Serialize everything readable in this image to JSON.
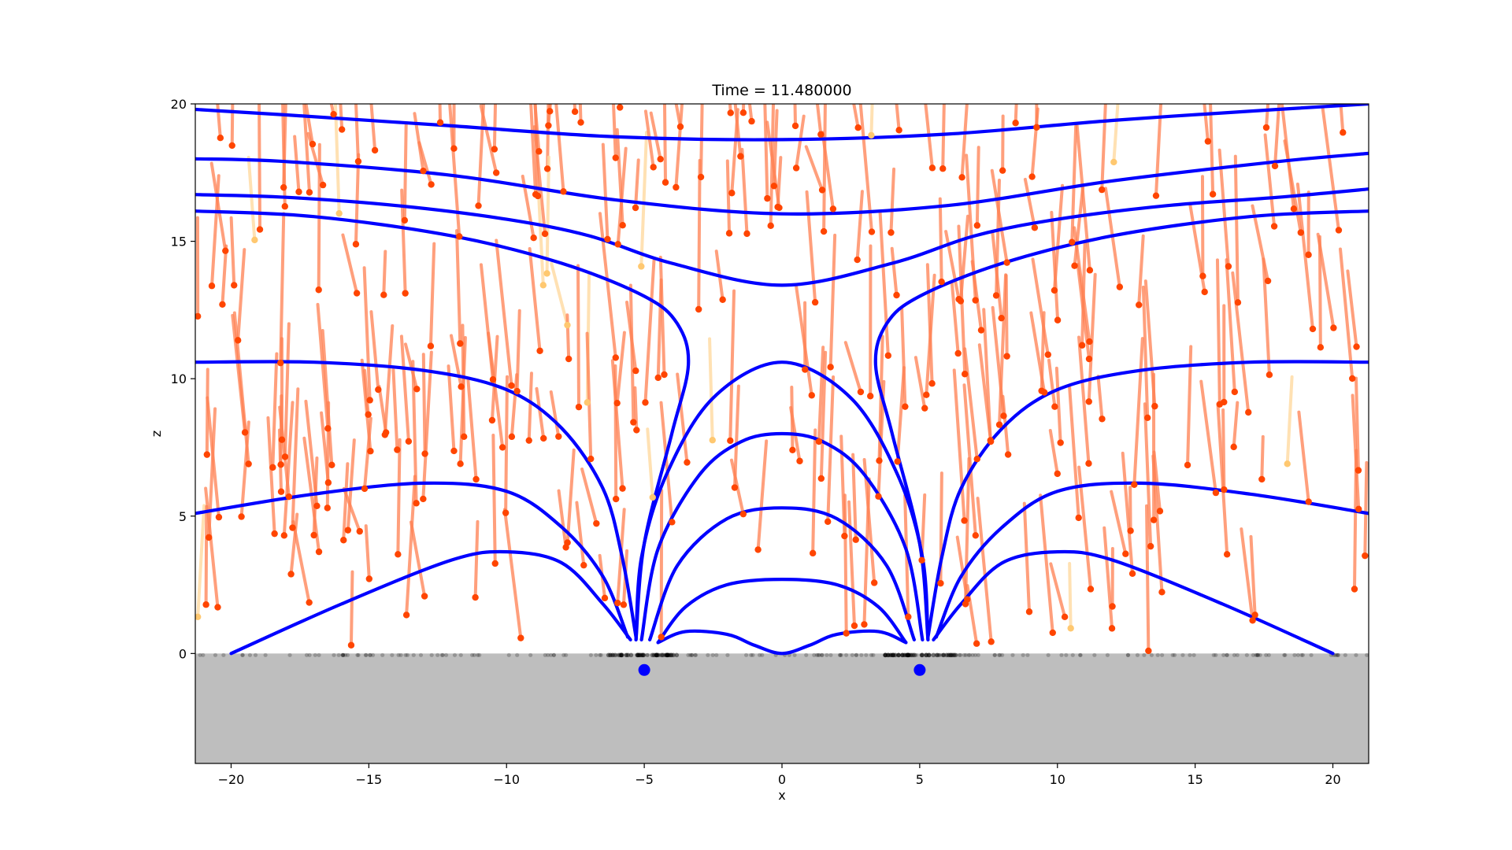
{
  "chart_data": {
    "type": "line",
    "title": "Time = 11.480000",
    "xlabel": "x",
    "ylabel": "z",
    "xlim": [
      -21.3,
      21.3
    ],
    "ylim": [
      -4,
      20
    ],
    "xticks": [
      -20,
      -15,
      -10,
      -5,
      0,
      5,
      10,
      15,
      20
    ],
    "xtick_labels": [
      "−20",
      "−15",
      "−10",
      "−5",
      "0",
      "5",
      "10",
      "15",
      "20"
    ],
    "yticks": [
      0,
      5,
      10,
      15,
      20
    ],
    "ytick_labels": [
      "0",
      "5",
      "10",
      "15",
      "20"
    ],
    "grid": false,
    "legend": "none",
    "ground_level": 0,
    "colors": {
      "field_line": "#0000ff",
      "ground": "#bebebe",
      "trail": "#ff7f50",
      "trail_light": "#ffd9a0",
      "particle_head": "#ff4500",
      "particle_head_light": "#ffc870",
      "surface_particles": "#000000",
      "magnet_source": "#0000ff"
    },
    "sources": [
      {
        "x": -5,
        "z": -0.6
      },
      {
        "x": 5,
        "z": -0.6
      }
    ],
    "field_lines": [
      {
        "x": [
          -21.3,
          -18,
          -12,
          -6,
          0,
          6,
          12,
          18,
          21.3
        ],
        "z": [
          19.8,
          19.6,
          19.2,
          18.8,
          18.7,
          18.9,
          19.4,
          19.8,
          20.0
        ]
      },
      {
        "x": [
          -21.3,
          -18,
          -12,
          -6,
          0,
          6,
          12,
          18,
          21.3
        ],
        "z": [
          18.0,
          17.9,
          17.4,
          16.5,
          16.0,
          16.3,
          17.2,
          17.9,
          18.2
        ]
      },
      {
        "x": [
          -21.3,
          -18,
          -14,
          -10,
          -7,
          -4,
          0,
          4,
          7,
          10,
          14,
          18,
          21.3
        ],
        "z": [
          16.7,
          16.6,
          16.3,
          15.8,
          15.2,
          14.2,
          13.4,
          14.2,
          15.2,
          15.8,
          16.3,
          16.6,
          16.9
        ]
      },
      {
        "x": [
          -21.3,
          -17,
          -12,
          -8,
          -5,
          -3.8,
          -3.4,
          -4.0,
          -5.0,
          -5.3
        ],
        "z": [
          16.1,
          15.9,
          15.2,
          14.2,
          13.0,
          12.0,
          10.5,
          8.0,
          4.0,
          0.5
        ]
      },
      {
        "x": [
          21.3,
          17,
          12,
          8,
          5,
          3.8,
          3.4,
          4.0,
          5.0,
          5.3
        ],
        "z": [
          16.1,
          15.9,
          15.2,
          14.2,
          13.0,
          12.0,
          10.5,
          8.0,
          4.0,
          0.5
        ]
      },
      {
        "x": [
          -21.3,
          -17,
          -13,
          -10,
          -8,
          -6.5,
          -5.8,
          -5.3
        ],
        "z": [
          10.6,
          10.6,
          10.3,
          9.6,
          8.2,
          6.0,
          3.5,
          0.6
        ]
      },
      {
        "x": [
          21.3,
          17,
          13,
          10,
          8,
          6.5,
          5.8,
          5.3
        ],
        "z": [
          10.6,
          10.6,
          10.3,
          9.6,
          8.2,
          6.0,
          3.5,
          0.6
        ]
      },
      {
        "x": [
          -21.3,
          -17,
          -13,
          -10,
          -8,
          -6.5,
          -5.6
        ],
        "z": [
          5.1,
          5.8,
          6.2,
          5.9,
          4.6,
          2.8,
          0.6
        ]
      },
      {
        "x": [
          21.3,
          17,
          13,
          10,
          8,
          6.5,
          5.6
        ],
        "z": [
          5.1,
          5.8,
          6.2,
          5.9,
          4.6,
          2.8,
          0.6
        ]
      },
      {
        "x": [
          -20,
          -16,
          -12,
          -10,
          -8,
          -6.5,
          -5.5
        ],
        "z": [
          0.0,
          1.8,
          3.4,
          3.7,
          3.3,
          1.8,
          0.5
        ]
      },
      {
        "x": [
          20,
          16,
          12,
          10,
          8,
          6.5,
          5.5
        ],
        "z": [
          0.0,
          1.8,
          3.4,
          3.7,
          3.3,
          1.8,
          0.5
        ]
      },
      {
        "x": [
          -5.3,
          -5.1,
          -4.2,
          -2.5,
          0,
          2.5,
          4.2,
          5.1,
          5.3
        ],
        "z": [
          0.5,
          3.5,
          6.5,
          9.3,
          10.6,
          9.3,
          6.5,
          3.5,
          0.5
        ]
      },
      {
        "x": [
          -5.1,
          -4.5,
          -3,
          -1.5,
          0,
          1.5,
          3,
          4.5,
          5.1
        ],
        "z": [
          0.5,
          3.8,
          6.5,
          7.7,
          8.0,
          7.7,
          6.5,
          3.8,
          0.5
        ]
      },
      {
        "x": [
          -4.8,
          -3.8,
          -2,
          0,
          2,
          3.8,
          4.8
        ],
        "z": [
          0.5,
          3.2,
          4.9,
          5.3,
          4.9,
          3.2,
          0.5
        ]
      },
      {
        "x": [
          -4.5,
          -3.5,
          -2,
          0,
          2,
          3.5,
          4.5
        ],
        "z": [
          0.4,
          1.7,
          2.5,
          2.7,
          2.5,
          1.7,
          0.4
        ]
      },
      {
        "x": [
          -4.5,
          -3.5,
          -2,
          -1,
          0,
          1,
          2,
          3.5,
          4.5
        ],
        "z": [
          0.4,
          0.8,
          0.7,
          0.3,
          0.0,
          0.3,
          0.7,
          0.8,
          0.4
        ]
      }
    ],
    "particles": {
      "count_in_flight": 330,
      "count_on_surface": 200,
      "trail_z_span": [
        1.5,
        5.5
      ]
    }
  }
}
